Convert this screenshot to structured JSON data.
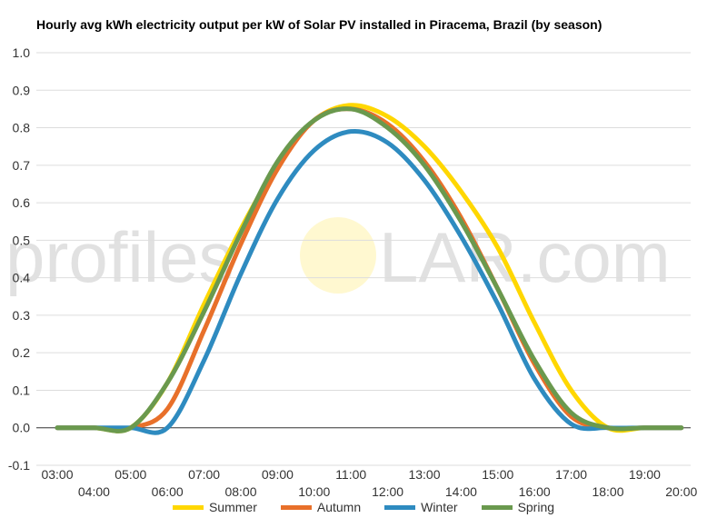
{
  "chart_data": {
    "type": "line",
    "title": "Hourly avg kWh electricity output per kW of Solar PV installed in Piracema, Brazil (by season)",
    "xlabel": "",
    "ylabel": "",
    "ylim": [
      -0.1,
      1.0
    ],
    "yticks": [
      "1.0",
      "0.9",
      "0.8",
      "0.7",
      "0.6",
      "0.5",
      "0.4",
      "0.3",
      "0.2",
      "0.1",
      "0.0",
      "-0.1"
    ],
    "x": [
      "03:00",
      "04:00",
      "05:00",
      "06:00",
      "07:00",
      "08:00",
      "09:00",
      "10:00",
      "11:00",
      "12:00",
      "13:00",
      "14:00",
      "15:00",
      "16:00",
      "17:00",
      "18:00",
      "19:00",
      "20:00"
    ],
    "grid": true,
    "legend": "bottom",
    "series": [
      {
        "name": "Summer",
        "color": "#ffd700",
        "values": [
          0,
          0,
          0,
          0.12,
          0.33,
          0.53,
          0.7,
          0.82,
          0.86,
          0.83,
          0.75,
          0.63,
          0.48,
          0.28,
          0.1,
          0,
          0,
          0
        ]
      },
      {
        "name": "Autumn",
        "color": "#e8702a",
        "values": [
          0,
          0,
          0,
          0.05,
          0.26,
          0.49,
          0.69,
          0.82,
          0.85,
          0.81,
          0.71,
          0.56,
          0.37,
          0.17,
          0.03,
          0,
          0,
          0
        ]
      },
      {
        "name": "Winter",
        "color": "#2e8bc0",
        "values": [
          0,
          0,
          0,
          0,
          0.18,
          0.41,
          0.61,
          0.74,
          0.79,
          0.76,
          0.66,
          0.51,
          0.33,
          0.13,
          0.01,
          0,
          0,
          0
        ]
      },
      {
        "name": "Spring",
        "color": "#6a994e",
        "values": [
          0,
          0,
          0,
          0.12,
          0.31,
          0.52,
          0.71,
          0.82,
          0.85,
          0.8,
          0.7,
          0.55,
          0.37,
          0.18,
          0.04,
          0,
          0,
          0
        ]
      }
    ]
  },
  "watermark": {
    "left": "profiles",
    "right": "LAR.com"
  }
}
